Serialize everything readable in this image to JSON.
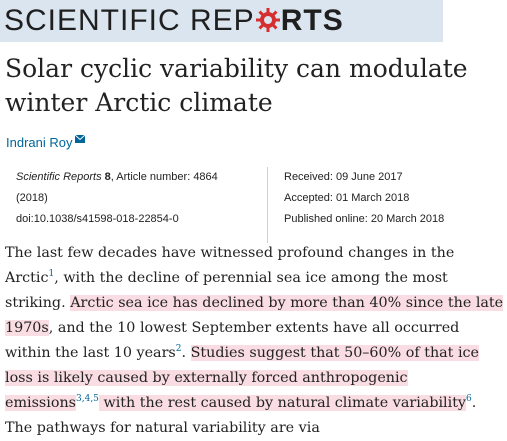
{
  "journal": {
    "name_part1": "SCIENTIFIC REP",
    "name_part2": "RTS"
  },
  "article": {
    "title": "Solar cyclic variability can modulate winter Arctic climate",
    "author": "Indrani Roy",
    "journal_name": "Scientific Reports",
    "volume": "8",
    "article_number_label": ", Article number: 4864",
    "year": "(2018)",
    "doi": "doi:10.1038/s41598-018-22854-0",
    "received": "Received: 09 June 2017",
    "accepted": "Accepted: 01 March 2018",
    "published": "Published online: 20 March 2018"
  },
  "abstract": {
    "s1": "The last few decades have witnessed profound changes in the Arctic",
    "ref1": "1",
    "s2": ", with the decline of perennial sea ice among the most striking. ",
    "h1": "Arctic sea ice has declined by more than 40% since the late 1970s",
    "s3": ", and the 10 lowest September extents have all occurred within the last 10 years",
    "ref2": "2",
    "s4": ". ",
    "h2": "Studies suggest that 50–60% of that ice loss is likely caused by externally forced anthropogenic emissions",
    "ref3": "3,4,5",
    "h3": " with the rest caused by natural climate variability",
    "ref4": "6",
    "s5": ". The pathways for natural variability are via"
  },
  "colors": {
    "masthead_bg": "#dbe5ef",
    "highlight": "#f9dde2",
    "link": "#006699",
    "gear_red": "#d62f2f"
  },
  "icons": [
    "gear-logo-icon",
    "mail-icon"
  ]
}
